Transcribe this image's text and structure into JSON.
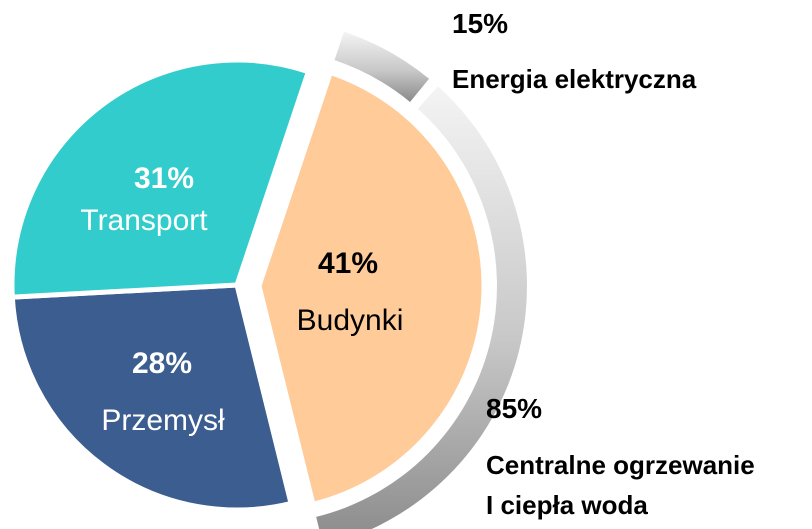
{
  "chart_data": {
    "type": "pie",
    "slices": [
      {
        "label": "Budynki",
        "value": 41,
        "display": "41%",
        "color": "#FECB99",
        "text_color": "#000000"
      },
      {
        "label": "Przemysł",
        "value": 28,
        "display": "28%",
        "color": "#3C5D8F",
        "text_color": "#ffffff"
      },
      {
        "label": "Transport",
        "value": 31,
        "display": "31%",
        "color": "#33CCCC",
        "text_color": "#ffffff"
      }
    ],
    "breakdown": {
      "of": "Budynki",
      "parts": [
        {
          "value": 15,
          "display": "15%",
          "label_lines": [
            "Energia elektryczna"
          ]
        },
        {
          "value": 85,
          "display": "85%",
          "label_lines": [
            "Centralne ogrzewanie",
            "I ciepła woda"
          ]
        }
      ]
    }
  }
}
